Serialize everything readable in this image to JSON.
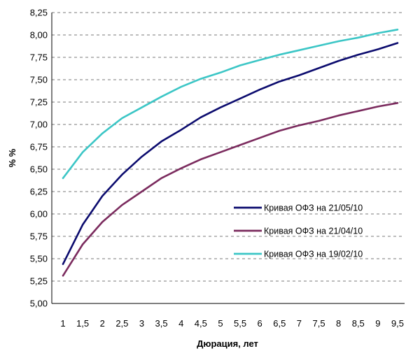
{
  "chart_data": {
    "type": "line",
    "title": "",
    "xlabel": "Дюрация, лет",
    "ylabel": "% %",
    "xlim": [
      1,
      9.5
    ],
    "ylim": [
      5.0,
      8.25
    ],
    "x_ticks": [
      "1",
      "1,5",
      "2",
      "2,5",
      "3",
      "3,5",
      "4",
      "4,5",
      "5",
      "5,5",
      "6",
      "6,5",
      "7",
      "7,5",
      "8",
      "8,5",
      "9",
      "9,5"
    ],
    "y_ticks": [
      "5,00",
      "5,25",
      "5,50",
      "5,75",
      "6,00",
      "6,25",
      "6,50",
      "6,75",
      "7,00",
      "7,25",
      "7,50",
      "7,75",
      "8,00",
      "8,25"
    ],
    "grid": "horizontal dashed",
    "legend_position": "right",
    "x": [
      1,
      1.5,
      2,
      2.5,
      3,
      3.5,
      4,
      4.5,
      5,
      5.5,
      6,
      6.5,
      7,
      7.5,
      8,
      8.5,
      9,
      9.5
    ],
    "series": [
      {
        "name": "Кривая ОФЗ на 21/05/10",
        "color": "#0b0b6e",
        "values": [
          5.44,
          5.88,
          6.2,
          6.44,
          6.64,
          6.81,
          6.94,
          7.08,
          7.19,
          7.29,
          7.39,
          7.48,
          7.55,
          7.63,
          7.71,
          7.78,
          7.84,
          7.91
        ]
      },
      {
        "name": "Кривая ОФЗ на 21/04/10",
        "color": "#7b2b5e",
        "values": [
          5.31,
          5.66,
          5.91,
          6.1,
          6.25,
          6.4,
          6.51,
          6.61,
          6.69,
          6.77,
          6.85,
          6.93,
          6.99,
          7.04,
          7.1,
          7.15,
          7.2,
          7.24
        ]
      },
      {
        "name": "Кривая ОФЗ на 19/02/10",
        "color": "#3cc6c6",
        "values": [
          6.4,
          6.69,
          6.9,
          7.07,
          7.19,
          7.31,
          7.42,
          7.51,
          7.58,
          7.66,
          7.72,
          7.78,
          7.83,
          7.88,
          7.93,
          7.97,
          8.02,
          8.06
        ]
      }
    ]
  }
}
